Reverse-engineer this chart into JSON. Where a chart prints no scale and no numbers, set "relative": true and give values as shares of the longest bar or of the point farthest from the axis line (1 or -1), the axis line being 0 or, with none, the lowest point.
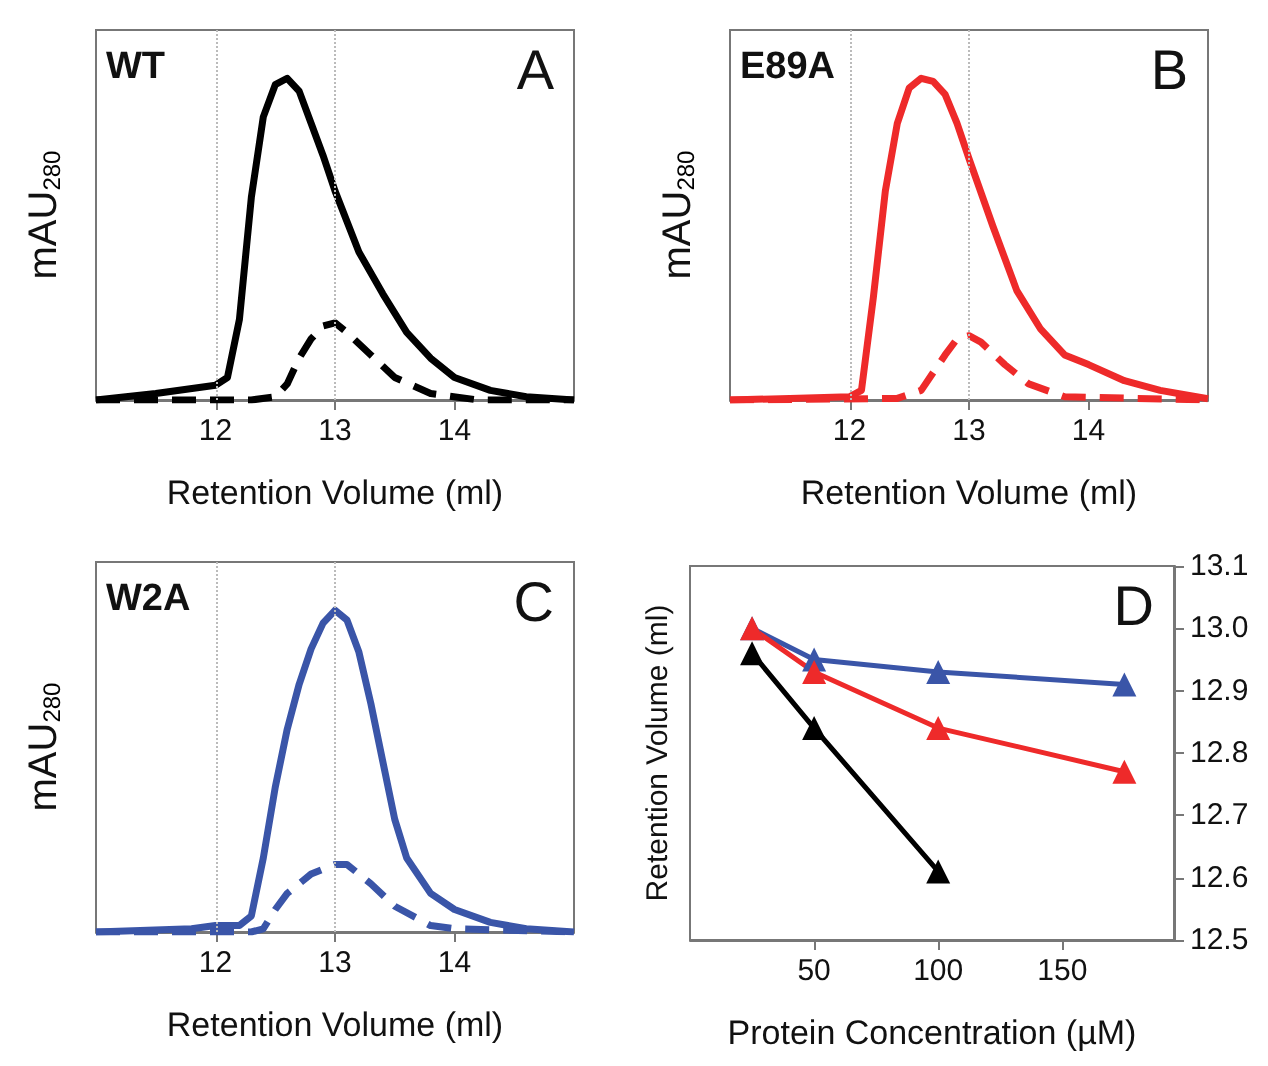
{
  "chart_data": [
    {
      "type": "line",
      "relative": true,
      "xlabel": "Retention Volume (ml)",
      "ylabel": "mAU$_{280}$",
      "annotations": [
        "WT",
        "A"
      ],
      "xlim": [
        11,
        15
      ],
      "xticks": [
        12,
        13,
        14
      ],
      "marker": "none",
      "grid": false,
      "ref_lines": [
        {
          "axis": "x",
          "value": 12,
          "color": "#bbbbbb",
          "line_style": "dotted"
        },
        {
          "axis": "x",
          "value": 13,
          "color": "#bbbbbb",
          "line_style": "dotted"
        }
      ],
      "series": [
        {
          "color": "#000000",
          "x": [
            11,
            11.5,
            12,
            12.1,
            12.2,
            12.3,
            12.4,
            12.5,
            12.6,
            12.7,
            12.8,
            12.9,
            13,
            13.2,
            13.4,
            13.6,
            13.8,
            14,
            14.3,
            14.6,
            15
          ],
          "values": [
            0,
            0.02,
            0.046,
            0.07,
            0.25,
            0.63,
            0.88,
            0.98,
            1,
            0.96,
            0.86,
            0.76,
            0.65,
            0.46,
            0.33,
            0.21,
            0.13,
            0.07,
            0.03,
            0.01,
            0
          ]
        },
        {
          "color": "#000000",
          "line_style": "dashed",
          "x": [
            11,
            12.3,
            12.5,
            12.6,
            12.7,
            12.8,
            12.9,
            13,
            13.1,
            13.3,
            13.5,
            13.8,
            14.2,
            15
          ],
          "values": [
            0,
            0,
            0.01,
            0.05,
            0.13,
            0.19,
            0.23,
            0.24,
            0.21,
            0.14,
            0.07,
            0.02,
            0,
            0
          ]
        }
      ]
    },
    {
      "type": "line",
      "relative": true,
      "xlabel": "Retention Volume (ml)",
      "ylabel": "mAU$_{280}$",
      "annotations": [
        "E89A",
        "B"
      ],
      "xlim": [
        11,
        15
      ],
      "xticks": [
        12,
        13,
        14
      ],
      "marker": "none",
      "grid": false,
      "ref_lines": [
        {
          "axis": "x",
          "value": 12,
          "color": "#bbbbbb",
          "line_style": "dotted"
        },
        {
          "axis": "x",
          "value": 13,
          "color": "#bbbbbb",
          "line_style": "dotted"
        }
      ],
      "series": [
        {
          "color": "#ee2a2a",
          "x": [
            11,
            11.5,
            12,
            12.1,
            12.2,
            12.3,
            12.4,
            12.5,
            12.6,
            12.7,
            12.8,
            12.9,
            13,
            13.2,
            13.4,
            13.6,
            13.8,
            14,
            14.3,
            14.6,
            15
          ],
          "values": [
            0,
            0.005,
            0.01,
            0.03,
            0.32,
            0.65,
            0.86,
            0.97,
            1,
            0.99,
            0.95,
            0.86,
            0.75,
            0.54,
            0.34,
            0.22,
            0.14,
            0.11,
            0.06,
            0.03,
            0.004
          ]
        },
        {
          "color": "#ee2a2a",
          "line_style": "dashed",
          "x": [
            11,
            12.4,
            12.6,
            12.8,
            12.9,
            13,
            13.1,
            13.3,
            13.5,
            13.8,
            15
          ],
          "values": [
            0,
            0.005,
            0.03,
            0.14,
            0.19,
            0.2,
            0.18,
            0.11,
            0.05,
            0.01,
            0
          ]
        }
      ]
    },
    {
      "type": "line",
      "relative": true,
      "xlabel": "Retention Volume (ml)",
      "ylabel": "mAU$_{280}$",
      "annotations": [
        "W2A",
        "C"
      ],
      "xlim": [
        11,
        15
      ],
      "xticks": [
        12,
        13,
        14
      ],
      "marker": "none",
      "grid": false,
      "ref_lines": [
        {
          "axis": "x",
          "value": 12,
          "color": "#bbbbbb",
          "line_style": "dotted"
        },
        {
          "axis": "x",
          "value": 13,
          "color": "#bbbbbb",
          "line_style": "dotted"
        }
      ],
      "series": [
        {
          "color": "#3a55a8",
          "x": [
            11,
            11.8,
            12,
            12.2,
            12.3,
            12.4,
            12.5,
            12.6,
            12.7,
            12.8,
            12.9,
            13,
            13.1,
            13.2,
            13.3,
            13.4,
            13.5,
            13.6,
            13.8,
            14,
            14.3,
            14.6,
            15
          ],
          "values": [
            0,
            0.01,
            0.02,
            0.02,
            0.05,
            0.23,
            0.45,
            0.63,
            0.77,
            0.88,
            0.96,
            1,
            0.97,
            0.87,
            0.71,
            0.53,
            0.35,
            0.23,
            0.12,
            0.07,
            0.03,
            0.01,
            0
          ]
        },
        {
          "color": "#3a55a8",
          "line_style": "dashed",
          "x": [
            11,
            12.3,
            12.4,
            12.5,
            12.6,
            12.8,
            13,
            13.1,
            13.3,
            13.5,
            13.8,
            14,
            15
          ],
          "values": [
            0,
            0,
            0.01,
            0.07,
            0.12,
            0.18,
            0.21,
            0.21,
            0.15,
            0.08,
            0.02,
            0.01,
            0
          ]
        }
      ]
    },
    {
      "type": "line",
      "xlabel": "Protein Concentration (µM)",
      "ylabel": "Retention Volume (ml)",
      "annotations": [
        "D"
      ],
      "xlim": [
        0,
        195
      ],
      "xticks": [
        50,
        100,
        150
      ],
      "y2lim": [
        12.5,
        13.1
      ],
      "y2ticks": [
        {
          "value": 12.5,
          "label": "12.5"
        },
        {
          "value": 12.6,
          "label": "12.6"
        },
        {
          "value": 12.7,
          "label": "12.7"
        },
        {
          "value": 12.8,
          "label": "12.8"
        },
        {
          "value": 12.9,
          "label": "12.9"
        },
        {
          "value": 13.0,
          "label": "13.0"
        },
        {
          "value": 13.1,
          "label": "13.1"
        }
      ],
      "marker": "triangle",
      "grid": false,
      "series": [
        {
          "color": "#000000",
          "axis": "y2",
          "x": [
            25,
            50,
            100
          ],
          "values": [
            12.96,
            12.84,
            12.61
          ]
        },
        {
          "color": "#3a55a8",
          "axis": "y2",
          "x": [
            25,
            50,
            100,
            175
          ],
          "values": [
            13.0,
            12.95,
            12.93,
            12.91
          ]
        },
        {
          "color": "#ee2a2a",
          "axis": "y2",
          "x": [
            25,
            50,
            100,
            175
          ],
          "values": [
            13.0,
            12.93,
            12.84,
            12.77
          ]
        }
      ]
    }
  ]
}
